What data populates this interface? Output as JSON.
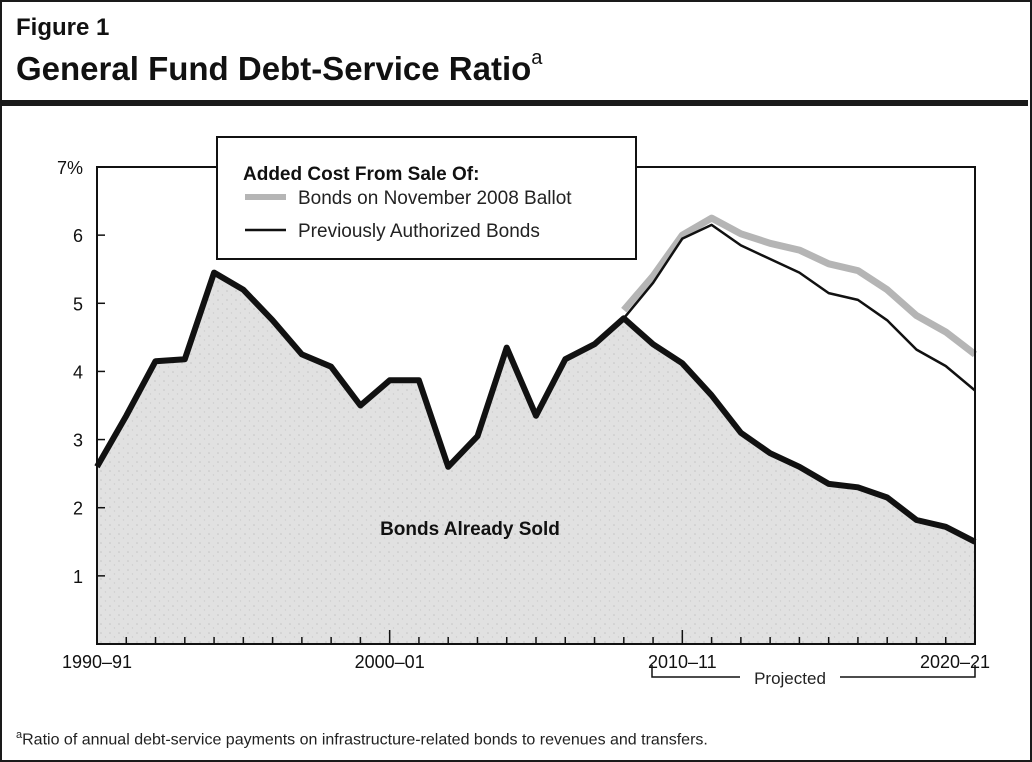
{
  "figure": {
    "label": "Figure 1",
    "title": "General Fund Debt-Service Ratio",
    "title_note_mark": "a",
    "footnote_mark": "a",
    "footnote": "Ratio of annual debt-service payments on infrastructure-related bonds to revenues and transfers."
  },
  "chart_data": {
    "type": "area",
    "title": "General Fund Debt-Service Ratio",
    "xlabel": "",
    "ylabel": "",
    "x_tick_labels": [
      "1990–91",
      "2000–01",
      "2010–11",
      "2020–21"
    ],
    "y_tick_labels": [
      "7%",
      "6",
      "5",
      "4",
      "3",
      "2",
      "1"
    ],
    "ylim": [
      0,
      7
    ],
    "xlim": [
      1990,
      2020
    ],
    "grid": false,
    "legend": {
      "title": "Added Cost From Sale Of:",
      "placement": "top-left",
      "entries": [
        "Bonds on November 2008 Ballot",
        "Previously Authorized Bonds"
      ]
    },
    "area_label": "Bonds Already Sold",
    "projected_label": "Projected",
    "projected_range": [
      2008,
      2020
    ],
    "colors": {
      "already_sold_fill": "#dcdcdc",
      "ballot_line": "#b5b5b5",
      "previous_line": "#111111"
    },
    "series": [
      {
        "name": "Bonds Already Sold",
        "x": [
          1990,
          1991,
          1992,
          1993,
          1994,
          1995,
          1996,
          1997,
          1998,
          1999,
          2000,
          2001,
          2002,
          2003,
          2004,
          2005,
          2006,
          2007,
          2008,
          2009,
          2010,
          2011,
          2012,
          2013,
          2014,
          2015,
          2016,
          2017,
          2018,
          2019,
          2020
        ],
        "values": [
          2.6,
          3.35,
          4.15,
          4.18,
          5.45,
          5.2,
          4.75,
          4.25,
          4.07,
          3.5,
          3.87,
          3.87,
          2.6,
          3.05,
          4.35,
          3.35,
          4.18,
          4.4,
          4.78,
          4.4,
          4.12,
          3.65,
          3.1,
          2.8,
          2.6,
          2.35,
          2.3,
          2.15,
          1.82,
          1.72,
          1.5
        ]
      },
      {
        "name": "Previously Authorized Bonds",
        "x": [
          2008,
          2009,
          2010,
          2011,
          2012,
          2013,
          2014,
          2015,
          2016,
          2017,
          2018,
          2019,
          2020
        ],
        "values": [
          4.78,
          5.3,
          5.95,
          6.15,
          5.85,
          5.65,
          5.45,
          5.15,
          5.05,
          4.75,
          4.32,
          4.08,
          3.72
        ]
      },
      {
        "name": "Bonds on November 2008 Ballot",
        "x": [
          2008,
          2009,
          2010,
          2011,
          2012,
          2013,
          2014,
          2015,
          2016,
          2017,
          2018,
          2019,
          2020
        ],
        "values": [
          4.9,
          5.4,
          6.0,
          6.25,
          6.02,
          5.88,
          5.78,
          5.58,
          5.48,
          5.2,
          4.82,
          4.58,
          4.25
        ]
      }
    ]
  }
}
